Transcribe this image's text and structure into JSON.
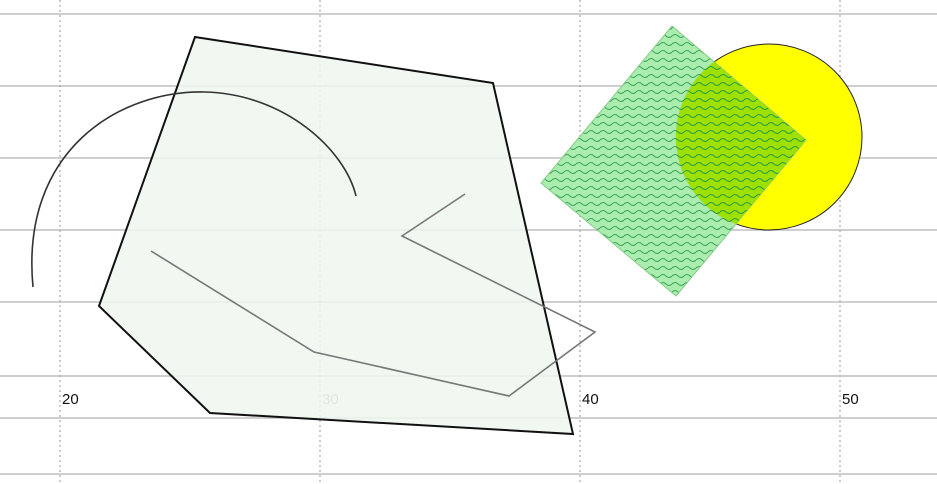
{
  "axis": {
    "x_tick_labels": [
      "20",
      "30",
      "40",
      "50"
    ],
    "label_colors": [
      "#111111",
      "#888888",
      "#111111",
      "#111111"
    ]
  },
  "shapes": {
    "polygon": {
      "fill": "#eef7ee",
      "stroke": "#111111"
    },
    "arc": {
      "stroke": "#333333"
    },
    "polyline": {
      "stroke": "#777777"
    },
    "diamond": {
      "fill": "#a4eca8",
      "pattern": "wavy",
      "pattern_color": "#2a9d4a",
      "stroke": "#88cc88"
    },
    "circle": {
      "fill": "#ffff00",
      "overlap_fill": "#9ee000",
      "stroke": "#222222"
    }
  },
  "grid": {
    "line_color": "#cfcfcf",
    "dashed_color": "#999999"
  }
}
